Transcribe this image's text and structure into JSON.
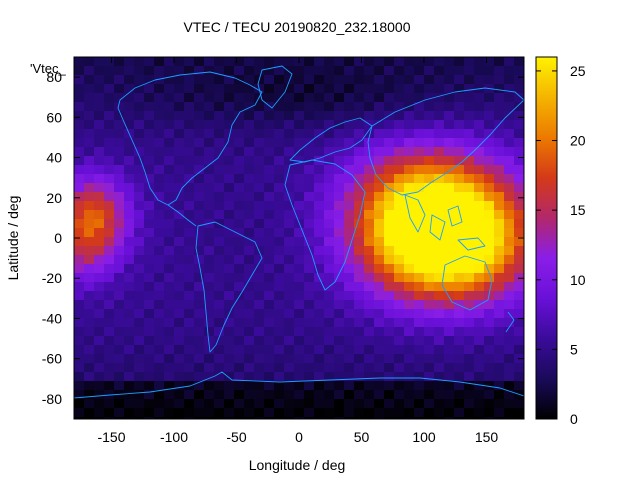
{
  "chart_data": {
    "type": "heatmap",
    "title": "VTEC / TECU 20190820_232.18000",
    "xlabel": "Longitude / deg",
    "ylabel": "Latitude / deg",
    "xlim": [
      -180,
      180
    ],
    "ylim": [
      -90,
      90
    ],
    "x_ticks": [
      -150,
      -100,
      -50,
      0,
      50,
      100,
      150
    ],
    "y_ticks": [
      -80,
      -60,
      -40,
      -20,
      0,
      20,
      40,
      60,
      80
    ],
    "colorbar": {
      "range": [
        0,
        26
      ],
      "ticks": [
        0,
        5,
        10,
        15,
        20,
        25
      ],
      "palette": [
        "#000000",
        "#1a0a5a",
        "#3a0b9a",
        "#6a10d8",
        "#8a1ee8",
        "#b2286a",
        "#d43a18",
        "#ec7a00",
        "#f5b400",
        "#fff200"
      ],
      "location": "right"
    },
    "annotation": "'Vtec_",
    "grid": false,
    "features": [
      {
        "lon": 125,
        "lat": -3,
        "value": 25,
        "sx": 55,
        "sy": 28
      },
      {
        "lon": 110,
        "lat": 10,
        "value": 17,
        "sx": 70,
        "sy": 32
      },
      {
        "lon": 80,
        "lat": 5,
        "value": 12,
        "sx": 45,
        "sy": 30
      },
      {
        "lon": 105,
        "lat": 30,
        "value": 10,
        "sx": 55,
        "sy": 20
      },
      {
        "lon": -165,
        "lat": 10,
        "value": 19,
        "sx": 28,
        "sy": 20
      },
      {
        "lon": -175,
        "lat": -10,
        "value": 10,
        "sx": 25,
        "sy": 15
      },
      {
        "lon": -40,
        "lat": 0,
        "value": 5,
        "sx": 80,
        "sy": 40
      },
      {
        "lon": 0,
        "lat": 70,
        "value": 4,
        "sx": 120,
        "sy": 15
      }
    ],
    "background_value": 6
  }
}
